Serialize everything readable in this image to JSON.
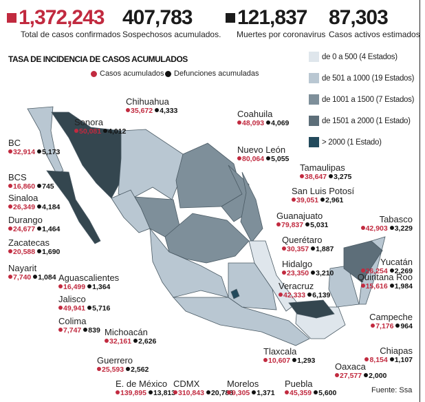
{
  "headline_stats": [
    {
      "value": "1,372,243",
      "label": "Total de casos confirmados",
      "marker_color": "#c12a3f"
    },
    {
      "value": "407,783",
      "label": "Sospechosos acumulados."
    },
    {
      "value": "121,837",
      "label": "Muertes por coronavirus",
      "marker_color": "#1b1b1b"
    },
    {
      "value": "87,303",
      "label": "Casos activos estimados"
    }
  ],
  "map_title": "TASA DE INCIDENCIA DE CASOS ACUMULADOS",
  "legend": {
    "cases": "Casos acumulados",
    "deaths": "Defunciones acumuladas"
  },
  "ranges": [
    {
      "label": "de 0 a 500 (4 Estados)",
      "color": "#dfe6ec"
    },
    {
      "label": "de 501 a 1000 (19 Estados)",
      "color": "#b9c7d2"
    },
    {
      "label": "de 1001 a 1500 (7 Estados)",
      "color": "#7e8f9a"
    },
    {
      "label": "de 1501 a 2000 (1 Estado)",
      "color": "#5d6e79"
    },
    {
      "label": "> 2000 (1 Estado)",
      "color": "#234a5c"
    }
  ],
  "states": [
    {
      "name": "Sonora",
      "cases": "50,081",
      "deaths": "4,012"
    },
    {
      "name": "Chihuahua",
      "cases": "35,672",
      "deaths": "4,333"
    },
    {
      "name": "BC",
      "cases": "32,914",
      "deaths": "5,173"
    },
    {
      "name": "BCS",
      "cases": "16,860",
      "deaths": "745"
    },
    {
      "name": "Sinaloa",
      "cases": "26,349",
      "deaths": "4,184"
    },
    {
      "name": "Durango",
      "cases": "24,677",
      "deaths": "1,464"
    },
    {
      "name": "Zacatecas",
      "cases": "20,588",
      "deaths": "1,690"
    },
    {
      "name": "Nayarit",
      "cases": "7,740",
      "deaths": "1,084"
    },
    {
      "name": "Aguascalientes",
      "cases": "16,499",
      "deaths": "1,364"
    },
    {
      "name": "Jalisco",
      "cases": "49,941",
      "deaths": "5,716"
    },
    {
      "name": "Colima",
      "cases": "7,747",
      "deaths": "839"
    },
    {
      "name": "Michoacán",
      "cases": "32,161",
      "deaths": "2,626"
    },
    {
      "name": "Guerrero",
      "cases": "25,593",
      "deaths": "2,562"
    },
    {
      "name": "E. de México",
      "cases": "139,895",
      "deaths": "13,813"
    },
    {
      "name": "CDMX",
      "cases": "310,843",
      "deaths": "20,788"
    },
    {
      "name": "Morelos",
      "cases": "9,305",
      "deaths": "1,371"
    },
    {
      "name": "Puebla",
      "cases": "45,359",
      "deaths": "5,600"
    },
    {
      "name": "Tlaxcala",
      "cases": "10,607",
      "deaths": "1,293"
    },
    {
      "name": "Oaxaca",
      "cases": "27,577",
      "deaths": "2,000"
    },
    {
      "name": "Chiapas",
      "cases": "8,154",
      "deaths": "1,107"
    },
    {
      "name": "Campeche",
      "cases": "7,176",
      "deaths": "964"
    },
    {
      "name": "Quintana Roo",
      "cases": "15,616",
      "deaths": "1,984"
    },
    {
      "name": "Yucatán",
      "cases": "26,254",
      "deaths": "2,269"
    },
    {
      "name": "Tabasco",
      "cases": "42,903",
      "deaths": "3,229"
    },
    {
      "name": "Veracruz",
      "cases": "42,333",
      "deaths": "6,139"
    },
    {
      "name": "Hidalgo",
      "cases": "23,350",
      "deaths": "3,210"
    },
    {
      "name": "Querétaro",
      "cases": "30,357",
      "deaths": "1,887"
    },
    {
      "name": "Guanajuato",
      "cases": "79,837",
      "deaths": "5,031"
    },
    {
      "name": "San Luis Potosí",
      "cases": "39,051",
      "deaths": "2,961"
    },
    {
      "name": "Tamaulipas",
      "cases": "38,647",
      "deaths": "3,275"
    },
    {
      "name": "Nuevo León",
      "cases": "80,064",
      "deaths": "5,055"
    },
    {
      "name": "Coahuila",
      "cases": "48,093",
      "deaths": "4,069"
    }
  ],
  "source": "Fuente: Ssa"
}
